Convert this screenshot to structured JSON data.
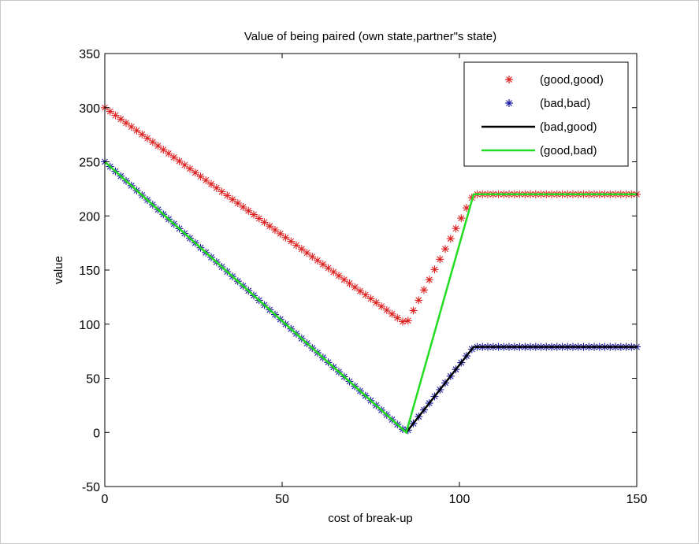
{
  "chart_data": {
    "type": "line",
    "title": "Value of being paired (own state,partner\"s state)",
    "xlabel": "cost of break-up",
    "ylabel": "value",
    "xlim": [
      0,
      150
    ],
    "ylim": [
      -50,
      350
    ],
    "xticks": [
      "0",
      "50",
      "100",
      "150"
    ],
    "yticks": [
      "-50",
      "0",
      "50",
      "100",
      "150",
      "200",
      "250",
      "300",
      "350"
    ],
    "grid": false,
    "legend_position": "top-right",
    "series": [
      {
        "name": "(good,good)",
        "style": "markers",
        "marker": "*",
        "color": "#dd2222",
        "points": [
          [
            0,
            300
          ],
          [
            85,
            100
          ],
          [
            104,
            220
          ],
          [
            150,
            220
          ]
        ]
      },
      {
        "name": "(bad,bad)",
        "style": "markers",
        "marker": "*",
        "color": "#1a1aa6",
        "points": [
          [
            0,
            250
          ],
          [
            85,
            0
          ],
          [
            104,
            79
          ],
          [
            150,
            79
          ]
        ]
      },
      {
        "name": "(bad,good)",
        "style": "line",
        "color": "#000000",
        "points": [
          [
            0,
            250
          ],
          [
            85,
            0
          ],
          [
            104,
            79
          ],
          [
            150,
            79
          ]
        ]
      },
      {
        "name": "(good,bad)",
        "style": "line",
        "color": "#22dd22",
        "points": [
          [
            0,
            250
          ],
          [
            85,
            0
          ],
          [
            104,
            220
          ],
          [
            150,
            220
          ]
        ]
      }
    ]
  }
}
